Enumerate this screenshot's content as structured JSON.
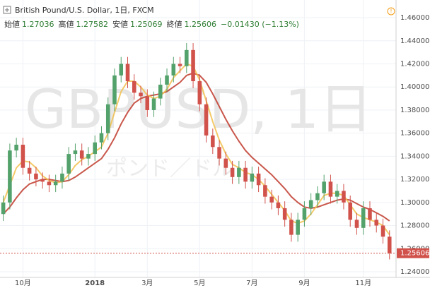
{
  "header": {
    "title": "British Pound/U.S. Dollar, 1日, FXCM",
    "open_label": "始値",
    "open": "1.27036",
    "high_label": "高値",
    "high": "1.27582",
    "low_label": "安値",
    "low": "1.25069",
    "close_label": "終値",
    "close": "1.25606",
    "change": "−0.01430 (−1.13%)"
  },
  "chart_data": {
    "type": "candlestick",
    "watermark": "GBPUSD, 1日",
    "watermark_sub": "ポンド／ドル",
    "categories": [
      null,
      null,
      null,
      "10月",
      null,
      null,
      null,
      null,
      null,
      null,
      null,
      null,
      null,
      null,
      "2018",
      null,
      null,
      null,
      null,
      null,
      null,
      null,
      "3月",
      null,
      null,
      null,
      null,
      null,
      null,
      null,
      "5月",
      null,
      null,
      null,
      null,
      null,
      null,
      null,
      "7月",
      null,
      null,
      null,
      null,
      null,
      null,
      null,
      "9月",
      null,
      null,
      null,
      null,
      null,
      null,
      null,
      null,
      "11月",
      null,
      null,
      null,
      null
    ],
    "open": [
      1.29,
      1.3,
      1.345,
      1.35,
      1.33,
      1.325,
      1.32,
      1.318,
      1.315,
      1.318,
      1.325,
      1.342,
      1.345,
      1.338,
      1.342,
      1.352,
      1.36,
      1.385,
      1.41,
      1.42,
      1.405,
      1.395,
      1.392,
      1.38,
      1.39,
      1.402,
      1.41,
      1.42,
      1.418,
      1.432,
      1.405,
      1.385,
      1.358,
      1.348,
      1.338,
      1.33,
      1.322,
      1.33,
      1.318,
      1.325,
      1.315,
      1.305,
      1.3,
      1.295,
      1.285,
      1.272,
      1.285,
      1.295,
      1.302,
      1.308,
      1.318,
      1.305,
      1.31,
      1.3,
      1.285,
      1.278,
      1.295,
      1.285,
      1.28,
      1.27036
    ],
    "high": [
      1.306,
      1.351,
      1.356,
      1.356,
      1.336,
      1.331,
      1.326,
      1.324,
      1.324,
      1.331,
      1.348,
      1.351,
      1.351,
      1.348,
      1.358,
      1.366,
      1.391,
      1.416,
      1.426,
      1.426,
      1.411,
      1.401,
      1.398,
      1.396,
      1.408,
      1.416,
      1.426,
      1.426,
      1.438,
      1.438,
      1.411,
      1.391,
      1.364,
      1.354,
      1.344,
      1.336,
      1.336,
      1.336,
      1.331,
      1.331,
      1.321,
      1.311,
      1.306,
      1.301,
      1.291,
      1.291,
      1.301,
      1.308,
      1.314,
      1.324,
      1.324,
      1.316,
      1.316,
      1.306,
      1.291,
      1.301,
      1.301,
      1.291,
      1.286,
      1.27582
    ],
    "low": [
      1.284,
      1.294,
      1.339,
      1.324,
      1.319,
      1.314,
      1.312,
      1.309,
      1.309,
      1.312,
      1.319,
      1.336,
      1.332,
      1.332,
      1.336,
      1.346,
      1.354,
      1.379,
      1.404,
      1.399,
      1.389,
      1.386,
      1.374,
      1.374,
      1.384,
      1.396,
      1.404,
      1.412,
      1.412,
      1.399,
      1.379,
      1.352,
      1.342,
      1.332,
      1.324,
      1.316,
      1.316,
      1.312,
      1.312,
      1.309,
      1.299,
      1.294,
      1.289,
      1.279,
      1.266,
      1.266,
      1.279,
      1.289,
      1.296,
      1.302,
      1.299,
      1.299,
      1.294,
      1.279,
      1.272,
      1.272,
      1.279,
      1.274,
      1.26436,
      1.25069
    ],
    "close": [
      1.3,
      1.345,
      1.35,
      1.33,
      1.325,
      1.32,
      1.318,
      1.315,
      1.318,
      1.325,
      1.342,
      1.345,
      1.338,
      1.342,
      1.352,
      1.36,
      1.385,
      1.41,
      1.42,
      1.405,
      1.395,
      1.392,
      1.38,
      1.39,
      1.402,
      1.41,
      1.42,
      1.418,
      1.432,
      1.405,
      1.385,
      1.358,
      1.348,
      1.338,
      1.33,
      1.322,
      1.33,
      1.318,
      1.325,
      1.315,
      1.305,
      1.3,
      1.295,
      1.285,
      1.272,
      1.285,
      1.295,
      1.302,
      1.308,
      1.318,
      1.305,
      1.31,
      1.3,
      1.285,
      1.278,
      1.295,
      1.285,
      1.28,
      1.27036,
      1.25606
    ],
    "up_color": "#53a16b",
    "down_color": "#d1514b",
    "series": [
      {
        "color": "#c0392b",
        "values": [
          1.29,
          1.296,
          1.304,
          1.311,
          1.316,
          1.318,
          1.32,
          1.32,
          1.319,
          1.318,
          1.319,
          1.322,
          1.326,
          1.33,
          1.334,
          1.338,
          1.346,
          1.356,
          1.368,
          1.378,
          1.386,
          1.39,
          1.392,
          1.393,
          1.394,
          1.396,
          1.4,
          1.404,
          1.41,
          1.412,
          1.41,
          1.404,
          1.394,
          1.383,
          1.372,
          1.362,
          1.353,
          1.345,
          1.339,
          1.334,
          1.329,
          1.324,
          1.318,
          1.312,
          1.305,
          1.3,
          1.296,
          1.295,
          1.296,
          1.298,
          1.3,
          1.302,
          1.303,
          1.302,
          1.299,
          1.296,
          1.294,
          1.291,
          1.288,
          1.284
        ]
      },
      {
        "color": "#f2c14e",
        "values": [
          1.3,
          1.315,
          1.33,
          1.336,
          1.335,
          1.33,
          1.323,
          1.319,
          1.317,
          1.318,
          1.324,
          1.332,
          1.337,
          1.34,
          1.344,
          1.348,
          1.36,
          1.378,
          1.396,
          1.405,
          1.405,
          1.4,
          1.393,
          1.39,
          1.392,
          1.398,
          1.408,
          1.414,
          1.42,
          1.418,
          1.406,
          1.388,
          1.37,
          1.354,
          1.342,
          1.333,
          1.33,
          1.326,
          1.324,
          1.32,
          1.314,
          1.307,
          1.3,
          1.293,
          1.284,
          1.282,
          1.284,
          1.29,
          1.298,
          1.306,
          1.308,
          1.308,
          1.306,
          1.298,
          1.29,
          1.287,
          1.285,
          1.283,
          1.28,
          1.272
        ]
      }
    ],
    "ylim": [
      1.2351,
      1.4753
    ],
    "yticks": [
      {
        "value": 1.24,
        "label": "1.24000"
      },
      {
        "value": 1.26,
        "label": "1.26000"
      },
      {
        "value": 1.28,
        "label": "1.28000"
      },
      {
        "value": 1.3,
        "label": "1.30000"
      },
      {
        "value": 1.32,
        "label": "1.32000"
      },
      {
        "value": 1.34,
        "label": "1.34000"
      },
      {
        "value": 1.36,
        "label": "1.36000"
      },
      {
        "value": 1.38,
        "label": "1.38000"
      },
      {
        "value": 1.4,
        "label": "1.40000"
      },
      {
        "value": 1.42,
        "label": "1.42000"
      },
      {
        "value": 1.44,
        "label": "1.44000"
      },
      {
        "value": 1.46,
        "label": "1.46000"
      }
    ],
    "grid": true
  }
}
